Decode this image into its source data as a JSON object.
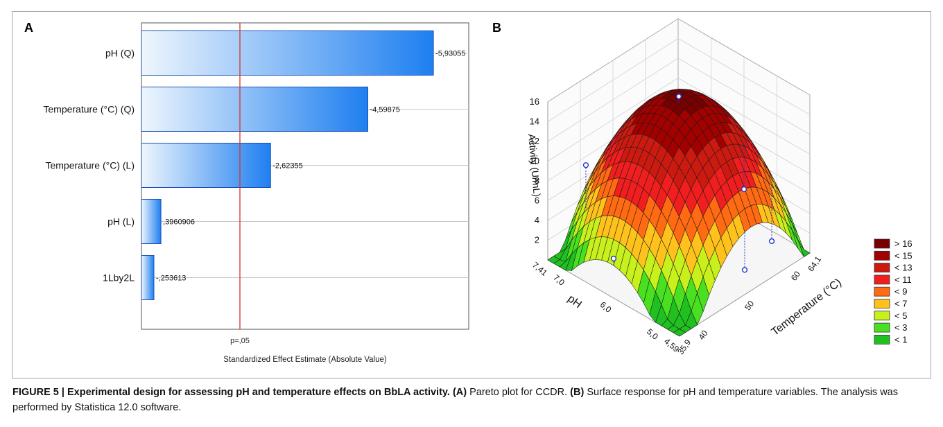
{
  "panels": {
    "a_label": "A",
    "b_label": "B"
  },
  "chart_data": [
    {
      "type": "bar",
      "orientation": "horizontal",
      "categories": [
        "pH (Q)",
        "Temperature (°C) (Q)",
        "Temperature (°C) (L)",
        "pH (L)",
        "1Lby2L"
      ],
      "values": [
        5.93055,
        4.59875,
        2.62355,
        0.3960906,
        0.253613
      ],
      "value_labels": [
        "-5,93055",
        "-4,59875",
        "-2,62355",
        ",3960906",
        "-,253613"
      ],
      "xlabel": "Standardized Effect Estimate (Absolute Value)",
      "reference_line": {
        "label": "p=,05",
        "value": 2.0
      },
      "grid": true,
      "colors": {
        "bar_light": "#e9f4fd",
        "bar_dark": "#1e7ff0",
        "bar_border": "#1b4fb5",
        "ref_line": "#d9302b"
      }
    },
    {
      "type": "surface",
      "z_label": "Activity (U/mL)",
      "x_label": "Temperature (°C)",
      "y_label": "pH",
      "z_ticks": [
        "2",
        "4",
        "6",
        "8",
        "10",
        "12",
        "14",
        "16"
      ],
      "x_ticks": [
        "35,9",
        "40",
        "50",
        "60",
        "64,1"
      ],
      "y_ticks": [
        "4,59",
        "5,0",
        "6,0",
        "7,0",
        "7,41"
      ],
      "x_range": [
        35.9,
        64.1
      ],
      "y_range": [
        4.59,
        7.41
      ],
      "z_range": [
        0,
        16
      ],
      "legend": {
        "position": "right",
        "entries": [
          {
            "label": "> 16",
            "color": "#7a0000"
          },
          {
            "label": "< 15",
            "color": "#a30000"
          },
          {
            "label": "< 13",
            "color": "#cc1a10"
          },
          {
            "label": "< 11",
            "color": "#f01e1e"
          },
          {
            "label": "< 9",
            "color": "#ff6a12"
          },
          {
            "label": "< 7",
            "color": "#ffc21c"
          },
          {
            "label": "< 5",
            "color": "#c8f01c"
          },
          {
            "label": "< 3",
            "color": "#48e020"
          },
          {
            "label": "< 1",
            "color": "#20c020"
          }
        ]
      },
      "observed_points": [
        {
          "temp": 50,
          "ph": 6.0,
          "activity": 16.2
        },
        {
          "temp": 40,
          "ph": 7.0,
          "activity": 9.5
        },
        {
          "temp": 35.9,
          "ph": 6.0,
          "activity": 4.0
        },
        {
          "temp": 50,
          "ph": 4.59,
          "activity": 2.5
        },
        {
          "temp": 60,
          "ph": 5.0,
          "activity": 1.3
        },
        {
          "temp": 64.1,
          "ph": 6.0,
          "activity": 2.6
        }
      ]
    }
  ],
  "caption": {
    "bold": "FIGURE 5 | Experimental design for assessing pH and temperature effects on BbLA activity. (A)",
    "t1": " Pareto plot for CCDR. ",
    "b2": "(B)",
    "t2": " Surface response for pH and temperature variables. The analysis was performed by Statistica 12.0 software."
  }
}
